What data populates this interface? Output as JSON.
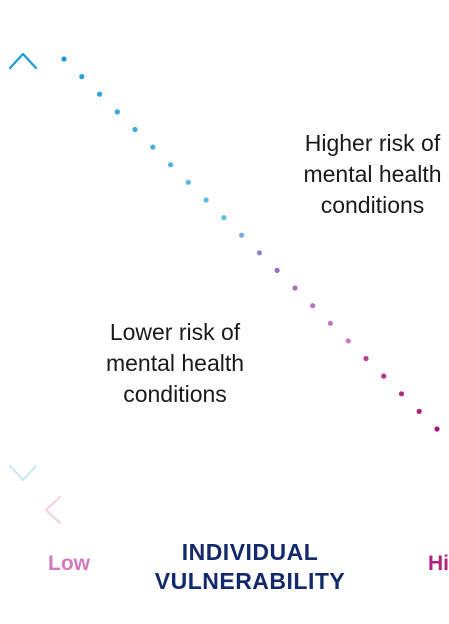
{
  "diagram": {
    "higher_risk_label": [
      "Higher risk of",
      "mental health",
      "conditions"
    ],
    "lower_risk_label": [
      "Lower risk of",
      "mental health",
      "conditions"
    ],
    "x_axis": {
      "title": [
        "INDIVIDUAL",
        "VULNERABILITY"
      ],
      "low_label": "Low",
      "high_label": "Hi"
    },
    "colors": {
      "vertical_axis_top": "#1a9bd7",
      "vertical_axis_bottom": "#c9e6f5",
      "horizontal_axis_left": "#f2d6ea",
      "horizontal_axis_right": "#a8197a",
      "dots_start": "#1a9bd7",
      "dots_mid": "#9b6cc0",
      "dots_end": "#a8197a",
      "axis_title": "#13296b",
      "low_label": "#d07ac0",
      "high_label": "#b0237f"
    },
    "dot_count": 22,
    "icons": [
      "arrow-up-icon",
      "arrow-down-icon",
      "arrow-left-icon"
    ]
  }
}
